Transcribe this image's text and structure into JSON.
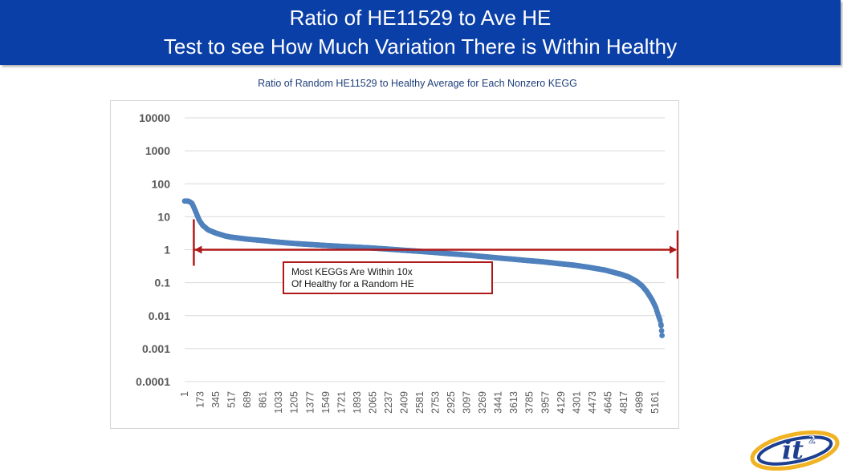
{
  "slide": {
    "title_line1": "Ratio of HE11529 to Ave HE",
    "title_line2": "Test to see How Much Variation There is Within Healthy"
  },
  "annotation": {
    "line1": "Most KEGGs Are Within 10x",
    "line2": "Of Healthy for a Random HE"
  },
  "logo": {
    "text": "it",
    "superscript": "2"
  },
  "colors": {
    "header_bg": "#0a3fa8",
    "series": "#4f81bd",
    "annotation": "#b01919"
  },
  "chart_data": {
    "type": "scatter",
    "title": "Ratio of Random HE11529 to Healthy Average for Each Nonzero KEGG",
    "xlabel": "",
    "ylabel": "",
    "y_scale": "log",
    "ylim": [
      0.0001,
      10000
    ],
    "xlim": [
      1,
      5300
    ],
    "y_ticks": [
      "0.0001",
      "0.001",
      "0.01",
      "0.1",
      "1",
      "10",
      "100",
      "1000",
      "10000"
    ],
    "x_ticks": [
      "1",
      "173",
      "345",
      "517",
      "689",
      "861",
      "1033",
      "1205",
      "1377",
      "1549",
      "1721",
      "1893",
      "2065",
      "2237",
      "2409",
      "2581",
      "2753",
      "2925",
      "3097",
      "3269",
      "3441",
      "3613",
      "3785",
      "3957",
      "4129",
      "4301",
      "4473",
      "4645",
      "4817",
      "4989",
      "5161"
    ],
    "grid": true,
    "legend": "none",
    "series": [
      {
        "x": [
          1,
          20,
          40,
          60,
          80,
          100,
          120,
          140,
          160,
          200,
          260,
          345,
          450,
          517,
          689,
          861,
          1033,
          1205,
          1377,
          1549,
          1721,
          1893,
          2065,
          2237,
          2409,
          2581,
          2753,
          2925,
          3097,
          3269,
          3441,
          3613,
          3785,
          3957,
          4129,
          4301,
          4473,
          4645,
          4817,
          4900,
          4989,
          5050,
          5100,
          5161,
          5200,
          5230,
          5250,
          5260,
          5265,
          5270
        ],
        "y": [
          30,
          30,
          30,
          28,
          26,
          20,
          15,
          11,
          8,
          5.5,
          4,
          3.2,
          2.6,
          2.4,
          2.1,
          1.9,
          1.7,
          1.55,
          1.45,
          1.35,
          1.27,
          1.2,
          1.13,
          1.05,
          0.97,
          0.9,
          0.83,
          0.76,
          0.7,
          0.63,
          0.57,
          0.52,
          0.47,
          0.43,
          0.38,
          0.34,
          0.29,
          0.24,
          0.18,
          0.15,
          0.11,
          0.08,
          0.055,
          0.03,
          0.018,
          0.01,
          0.007,
          0.005,
          0.0035,
          0.0025
        ]
      }
    ],
    "reference_line": {
      "x_start": 173,
      "x_end": 5300,
      "y": 1
    }
  }
}
